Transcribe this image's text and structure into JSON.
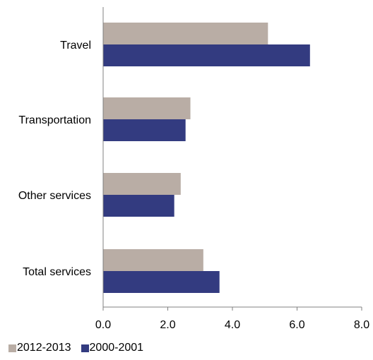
{
  "chart_data": {
    "type": "bar",
    "orientation": "horizontal",
    "categories": [
      "Travel",
      "Transportation",
      "Other services",
      "Total services"
    ],
    "series": [
      {
        "name": "2012-2013",
        "values": [
          5.1,
          2.7,
          2.4,
          3.1
        ],
        "color": "#b9ada5"
      },
      {
        "name": "2000-2001",
        "values": [
          6.4,
          2.55,
          2.2,
          3.6
        ],
        "color": "#333b80"
      }
    ],
    "xticks": [
      "0.0",
      "2.0",
      "4.0",
      "6.0",
      "8.0"
    ],
    "xlim": [
      0,
      8
    ],
    "title": "",
    "xlabel": "",
    "ylabel": "",
    "grid": false,
    "legend_position": "bottom-left"
  },
  "legend": {
    "items": [
      {
        "label": "2012-2013",
        "color": "#b9ada5"
      },
      {
        "label": "2000-2001",
        "color": "#333b80"
      }
    ]
  }
}
